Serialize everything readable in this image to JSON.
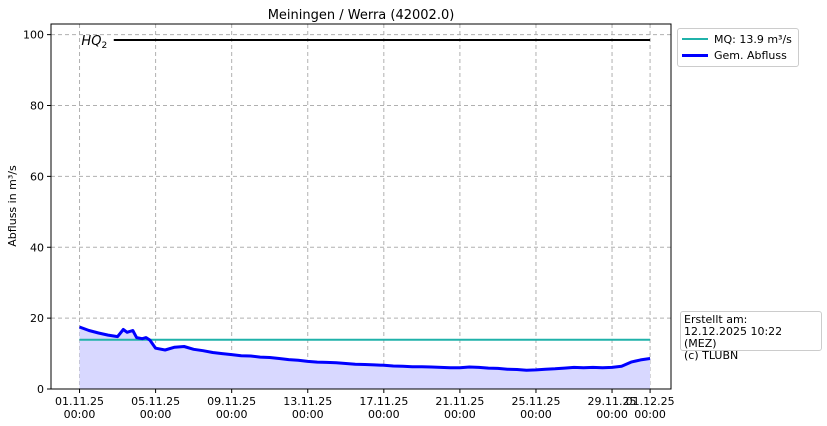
{
  "chart_data": {
    "type": "line",
    "title": "Meiningen / Werra (42002.0)",
    "xlabel": "",
    "ylabel": "Abfluss in m³/s",
    "ylim": [
      0,
      103
    ],
    "yticks": [
      0,
      20,
      40,
      60,
      80,
      100
    ],
    "xticks": [
      {
        "day": 0,
        "date": "01.11.25",
        "time": "00:00"
      },
      {
        "day": 4,
        "date": "05.11.25",
        "time": "00:00"
      },
      {
        "day": 8,
        "date": "09.11.25",
        "time": "00:00"
      },
      {
        "day": 12,
        "date": "13.11.25",
        "time": "00:00"
      },
      {
        "day": 16,
        "date": "17.11.25",
        "time": "00:00"
      },
      {
        "day": 20,
        "date": "21.11.25",
        "time": "00:00"
      },
      {
        "day": 24,
        "date": "25.11.25",
        "time": "00:00"
      },
      {
        "day": 28,
        "date": "29.11.25",
        "time": "00:00"
      },
      {
        "day": 30,
        "date": "01.12.25",
        "time": "00:00"
      }
    ],
    "grid": true,
    "legend_position": "outside-top-right",
    "series": [
      {
        "name": "MQ: 13.9 m³/s",
        "color": "#20b2aa",
        "x": [
          0,
          30
        ],
        "y": [
          13.9,
          13.9
        ]
      },
      {
        "name": "Gem. Abfluss",
        "color": "#0000ff",
        "fill": "#d8d8ff",
        "x": [
          0,
          0.5,
          1,
          1.5,
          2,
          2.3,
          2.5,
          2.8,
          3,
          3.3,
          3.5,
          3.7,
          4,
          4.5,
          5,
          5.5,
          6,
          6.5,
          7,
          7.5,
          8,
          8.5,
          9,
          9.5,
          10,
          10.5,
          11,
          11.5,
          12,
          12.5,
          13,
          13.5,
          14,
          14.5,
          15,
          15.5,
          16,
          16.5,
          17,
          17.5,
          18,
          18.5,
          19,
          19.5,
          20,
          20.5,
          21,
          21.5,
          22,
          22.5,
          23,
          23.5,
          24,
          24.5,
          25,
          25.5,
          26,
          26.5,
          27,
          27.5,
          28,
          28.5,
          29,
          29.5,
          30
        ],
        "y": [
          17.5,
          16.5,
          15.8,
          15.2,
          14.8,
          16.8,
          16.0,
          16.5,
          14.5,
          14.2,
          14.5,
          13.8,
          11.5,
          11.0,
          11.8,
          12.0,
          11.2,
          10.8,
          10.3,
          10.0,
          9.7,
          9.4,
          9.3,
          9.0,
          8.9,
          8.6,
          8.3,
          8.1,
          7.8,
          7.6,
          7.5,
          7.4,
          7.2,
          7.0,
          6.9,
          6.8,
          6.7,
          6.5,
          6.4,
          6.3,
          6.3,
          6.2,
          6.1,
          6.0,
          6.0,
          6.2,
          6.1,
          5.9,
          5.8,
          5.6,
          5.5,
          5.3,
          5.4,
          5.6,
          5.7,
          5.9,
          6.1,
          6.0,
          6.1,
          6.0,
          6.1,
          6.4,
          7.6,
          8.2,
          8.6
        ]
      },
      {
        "name": "HQ₂",
        "color": "#000000",
        "x": [
          1.8,
          30
        ],
        "y": [
          98.5,
          98.5
        ]
      }
    ],
    "annotations": [
      {
        "text": "HQ",
        "subscript": "2",
        "near_day": 0.1,
        "y": 98.5
      }
    ]
  },
  "legend": [
    {
      "label": "MQ: 13.9 m³/s",
      "color": "#20b2aa",
      "width": 2
    },
    {
      "label": "Gem. Abfluss",
      "color": "#0000ff",
      "width": 3
    }
  ],
  "credit": {
    "line1": "Erstellt am:",
    "line2": "12.12.2025 10:22 (MEZ)",
    "line3": "(c) TLUBN"
  }
}
